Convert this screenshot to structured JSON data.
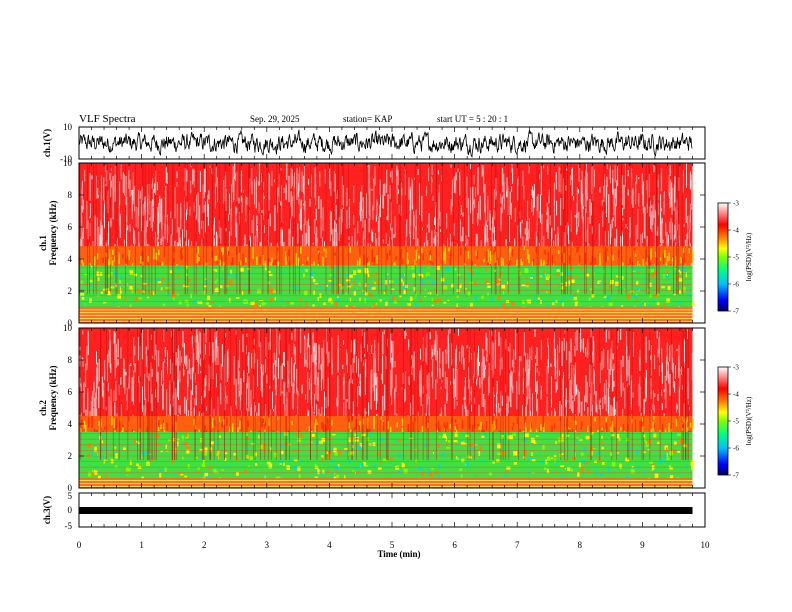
{
  "chart_data": {
    "type": "heatmap",
    "title": "VLF Spectra",
    "header": {
      "date": "Sep. 29, 2025",
      "station": "station= KAP",
      "start": "start  UT  =   5  : 20 : 1"
    },
    "xlabel": "Time  (min)",
    "x_ticks": [
      "0",
      "1",
      "2",
      "3",
      "4",
      "5",
      "6",
      "7",
      "8",
      "9",
      "10"
    ],
    "xlim": [
      0,
      10
    ],
    "panels": [
      {
        "name": "ch1-waveform",
        "ylabel": "ch.1(V)",
        "ylim": [
          -10,
          10
        ],
        "y_ticks": [
          "10",
          "-10"
        ],
        "type": "line",
        "data_end_min": 9.8
      },
      {
        "name": "ch1-spectrogram",
        "ylabel_line1": "ch.1",
        "ylabel_line2": "Frequency  (kHz)",
        "ylim": [
          0,
          10
        ],
        "y_ticks": [
          "0",
          "2",
          "4",
          "6",
          "8",
          "10"
        ],
        "type": "heatmap",
        "band_top_khz": 3.6,
        "band_bottom_khz": 1.0,
        "transition_khz": 4.8,
        "data_end_min": 9.8
      },
      {
        "name": "ch2-spectrogram",
        "ylabel_line1": "ch.2",
        "ylabel_line2": "Frequency  (kHz)",
        "ylim": [
          0,
          10
        ],
        "y_ticks": [
          "0",
          "2",
          "4",
          "6",
          "8",
          "10"
        ],
        "type": "heatmap",
        "band_top_khz": 3.5,
        "band_bottom_khz": 0.6,
        "transition_khz": 4.5,
        "data_end_min": 9.8
      },
      {
        "name": "ch3-waveform",
        "ylabel": "ch.3(V)",
        "ylim": [
          -5,
          5
        ],
        "y_ticks": [
          "5",
          "0",
          "-5"
        ],
        "type": "line",
        "data_end_min": 9.8
      }
    ],
    "colorbar": {
      "label": "log(PSD)(V²/Hz)",
      "range": [
        -7,
        -3
      ],
      "ticks": [
        "-3",
        "-4",
        "-5",
        "-6",
        "-7"
      ],
      "colors": [
        "#000060",
        "#0000ff",
        "#00c0ff",
        "#00ff80",
        "#80ff00",
        "#ffff00",
        "#ff8000",
        "#ff0000",
        "#ff8080",
        "#ffffff"
      ]
    }
  }
}
